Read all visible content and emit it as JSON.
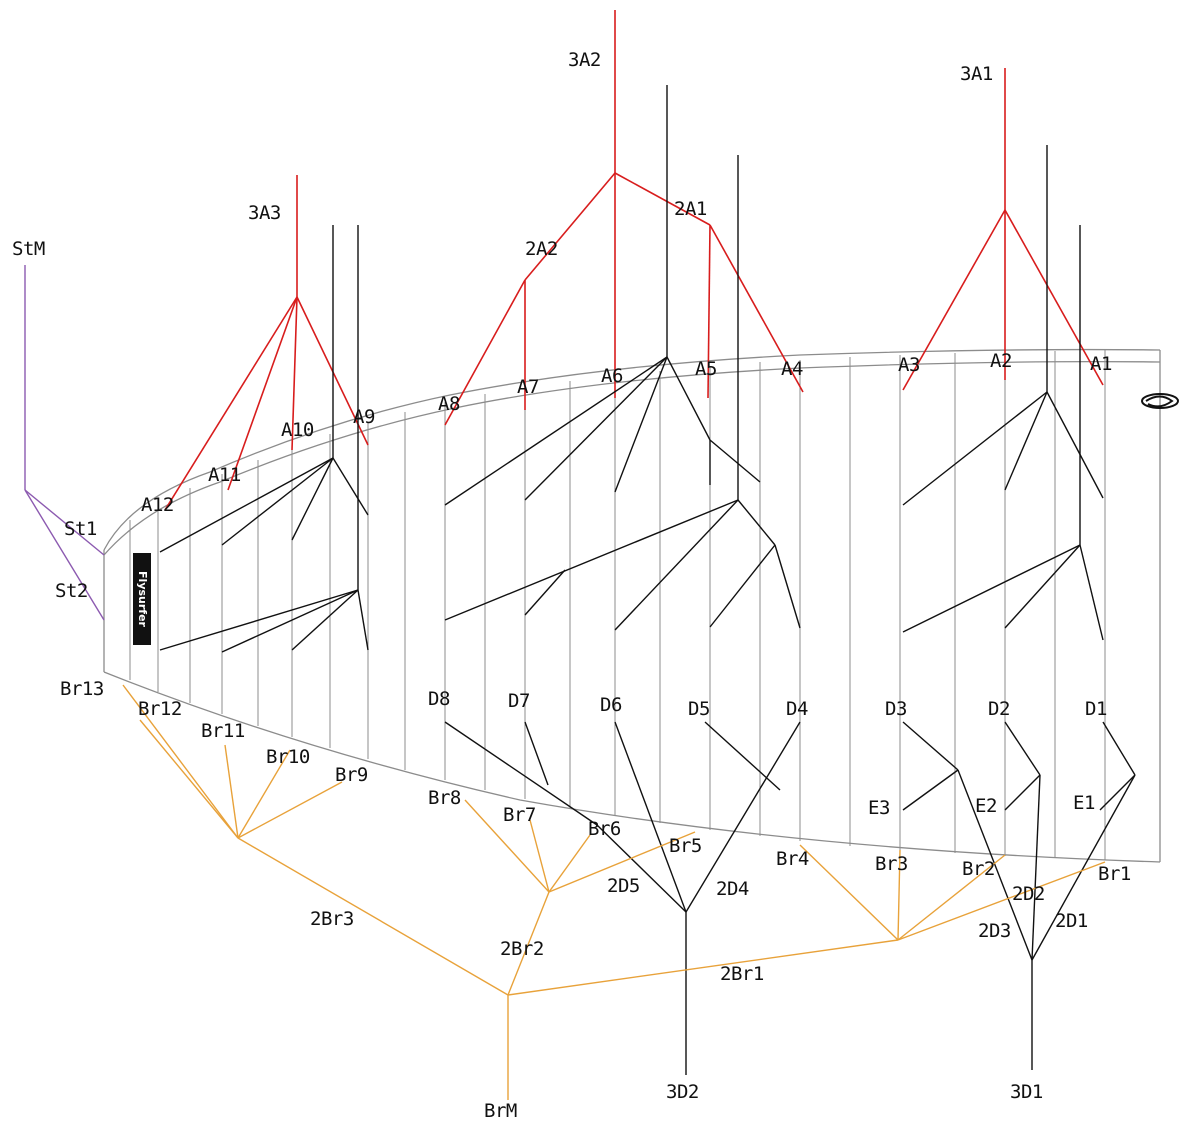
{
  "diagram": {
    "colors": {
      "canopy": "#8c8c8c",
      "a_lines": "#d81d1d",
      "br_lines": "#e8a23a",
      "d_lines": "#111111",
      "st_lines": "#8c5ab0"
    },
    "icons": [
      "kite-logo",
      "swirl-icon"
    ],
    "logo_text": "Flysurfer",
    "labels": {
      "a_lines": {
        "A1": "A1",
        "A2": "A2",
        "A3": "A3",
        "A4": "A4",
        "A5": "A5",
        "A6": "A6",
        "A7": "A7",
        "A8": "A8",
        "A9": "A9",
        "A10": "A10",
        "A11": "A11",
        "A12": "A12"
      },
      "a_cascade": {
        "2A1": "2A1",
        "2A2": "2A2",
        "3A1": "3A1",
        "3A2": "3A2",
        "3A3": "3A3"
      },
      "stabilo": {
        "StM": "StM",
        "St1": "St1",
        "St2": "St2"
      },
      "brakes": {
        "Br1": "Br1",
        "Br2": "Br2",
        "Br3": "Br3",
        "Br4": "Br4",
        "Br5": "Br5",
        "Br6": "Br6",
        "Br7": "Br7",
        "Br8": "Br8",
        "Br9": "Br9",
        "Br10": "Br10",
        "Br11": "Br11",
        "Br12": "Br12",
        "Br13": "Br13"
      },
      "brake_cascade": {
        "2Br1": "2Br1",
        "2Br2": "2Br2",
        "2Br3": "2Br3",
        "BrM": "BrM"
      },
      "d_lines": {
        "D1": "D1",
        "D2": "D2",
        "D3": "D3",
        "D4": "D4",
        "D5": "D5",
        "D6": "D6",
        "D7": "D7",
        "D8": "D8"
      },
      "e_lines": {
        "E1": "E1",
        "E2": "E2",
        "E3": "E3"
      },
      "d_cascade": {
        "2D1": "2D1",
        "2D2": "2D2",
        "2D3": "2D3",
        "2D4": "2D4",
        "2D5": "2D5",
        "3D1": "3D1",
        "3D2": "3D2"
      }
    }
  }
}
